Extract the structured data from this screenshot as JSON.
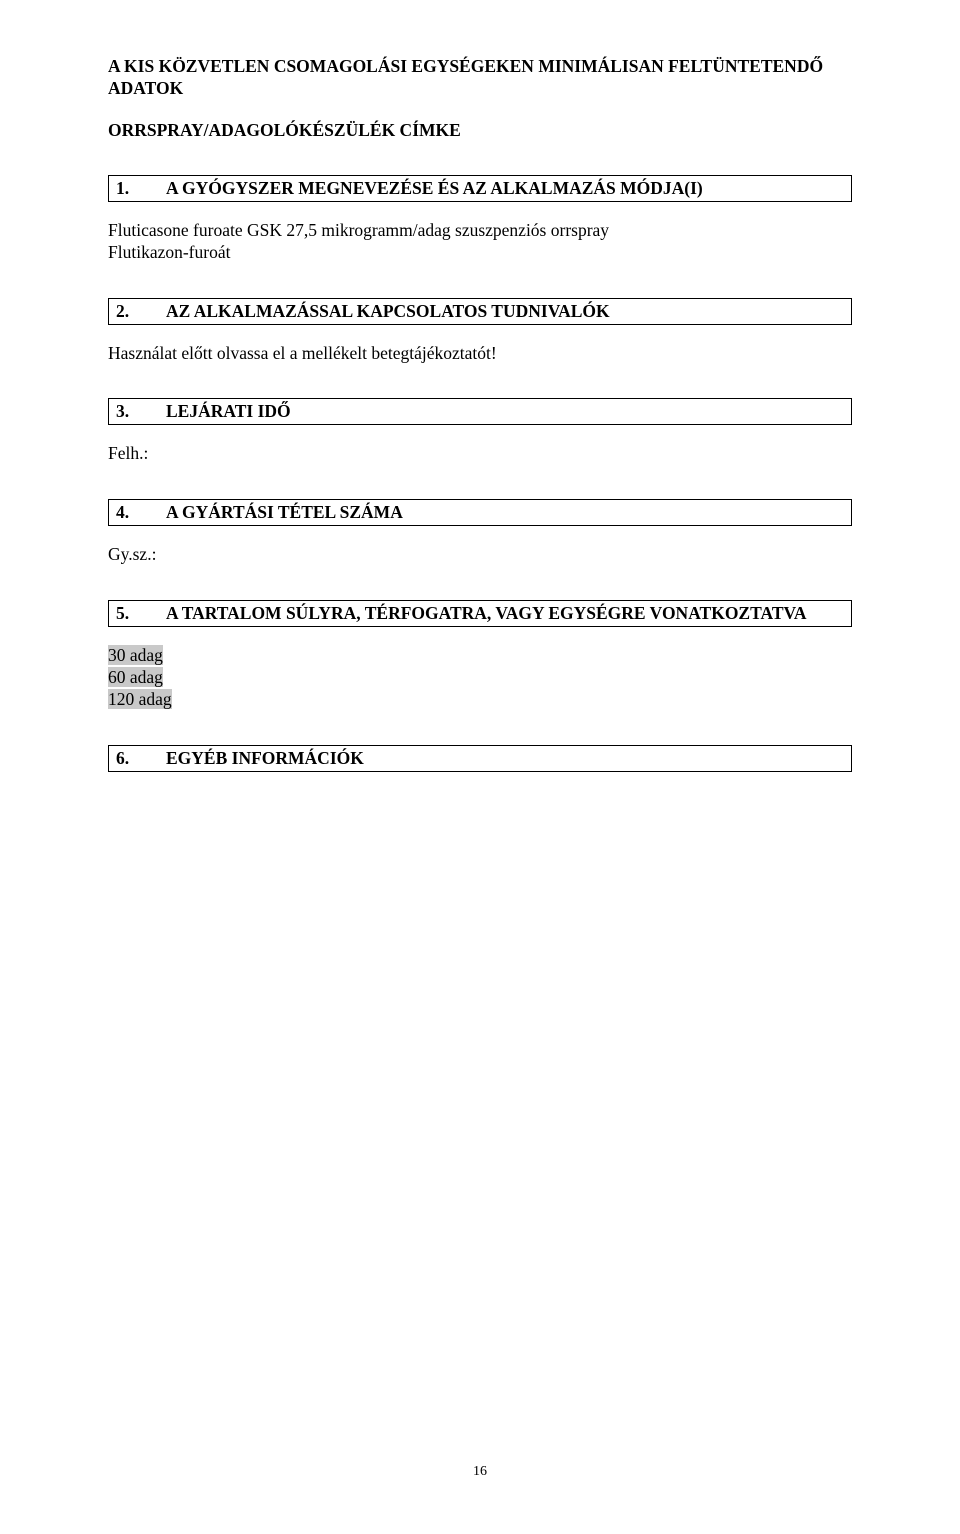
{
  "header": {
    "line1": "A KIS KÖZVETLEN CSOMAGOLÁSI EGYSÉGEKEN MINIMÁLISAN FELTÜNTETENDŐ",
    "line2": "ADATOK",
    "sub": "ORRSPRAY/ADAGOLÓKÉSZÜLÉK CÍMKE"
  },
  "sections": [
    {
      "num": "1.",
      "title": "A GYÓGYSZER MEGNEVEZÉSE ÉS AZ ALKALMAZÁS MÓDJA(I)",
      "body": [
        " Fluticasone furoate GSK 27,5 mikrogramm/adag szuszpenziós orrspray",
        "Flutikazon-furoát"
      ]
    },
    {
      "num": "2.",
      "title": "AZ ALKALMAZÁSSAL KAPCSOLATOS TUDNIVALÓK",
      "body": [
        "Használat előtt olvassa el a mellékelt betegtájékoztatót!"
      ]
    },
    {
      "num": "3.",
      "title": "LEJÁRATI IDŐ",
      "body": [
        "Felh.:"
      ]
    },
    {
      "num": "4.",
      "title": "A GYÁRTÁSI TÉTEL SZÁMA",
      "body": [
        "Gy.sz.:"
      ]
    },
    {
      "num": "5.",
      "title": "A TARTALOM SÚLYRA, TÉRFOGATRA, VAGY EGYSÉGRE VONATKOZTATVA",
      "body_highlight": [
        "30 adag",
        "60 adag",
        "120 adag"
      ]
    },
    {
      "num": "6.",
      "title": "EGYÉB INFORMÁCIÓK",
      "body": []
    }
  ],
  "page_number": "16",
  "colors": {
    "text": "#000000",
    "background": "#ffffff",
    "highlight": "#c9c9c9",
    "border": "#000000"
  }
}
